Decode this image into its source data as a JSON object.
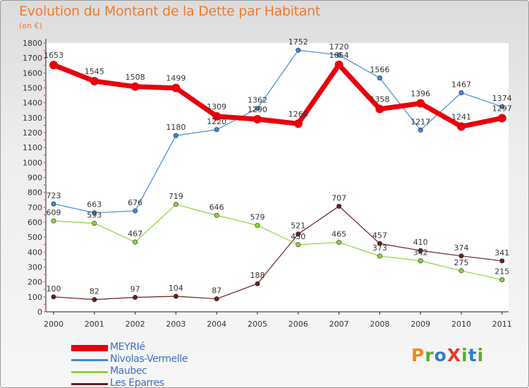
{
  "page": {
    "title": "Evolution du Montant de la Dette par Habitant",
    "unit": "(en €)",
    "brand": "ProXiti",
    "brand_colors": [
      "#f08a1c",
      "#5aaa2a",
      "#2a7fd0",
      "#e23c2c",
      "#5aaa2a",
      "#2a7fd0",
      "#5aaa2a"
    ]
  },
  "chart_data": {
    "type": "line",
    "title": "Evolution du Montant de la Dette par Habitant",
    "ylabel": "(en €)",
    "xlabel": "",
    "x": [
      "2000",
      "2001",
      "2002",
      "2003",
      "2004",
      "2005",
      "2006",
      "2007",
      "2008",
      "2009",
      "2010",
      "2011"
    ],
    "ylim": [
      0,
      1800
    ],
    "y_ticks": [
      0,
      100,
      200,
      300,
      400,
      500,
      600,
      700,
      800,
      900,
      1000,
      1100,
      1200,
      1300,
      1400,
      1500,
      1600,
      1700,
      1800
    ],
    "grid": false,
    "legend_position": "bottom-left",
    "series": [
      {
        "name": "MEYRIé",
        "color": "#e8000c",
        "values": [
          1653,
          1545,
          1508,
          1499,
          1309,
          1290,
          1260,
          1654,
          1358,
          1396,
          1241,
          1297
        ]
      },
      {
        "name": "Nivolas-Vermelle",
        "color": "#3a8ad8",
        "values": [
          723,
          663,
          676,
          1180,
          1220,
          1362,
          1752,
          1720,
          1566,
          1217,
          1467,
          1374
        ]
      },
      {
        "name": "Maubec",
        "color": "#8cd43c",
        "values": [
          609,
          593,
          467,
          719,
          646,
          579,
          450,
          465,
          373,
          342,
          275,
          215
        ]
      },
      {
        "name": "Les Eparres",
        "color": "#6b1e1e",
        "values": [
          100,
          82,
          97,
          104,
          87,
          188,
          521,
          707,
          457,
          410,
          374,
          341
        ]
      }
    ]
  }
}
